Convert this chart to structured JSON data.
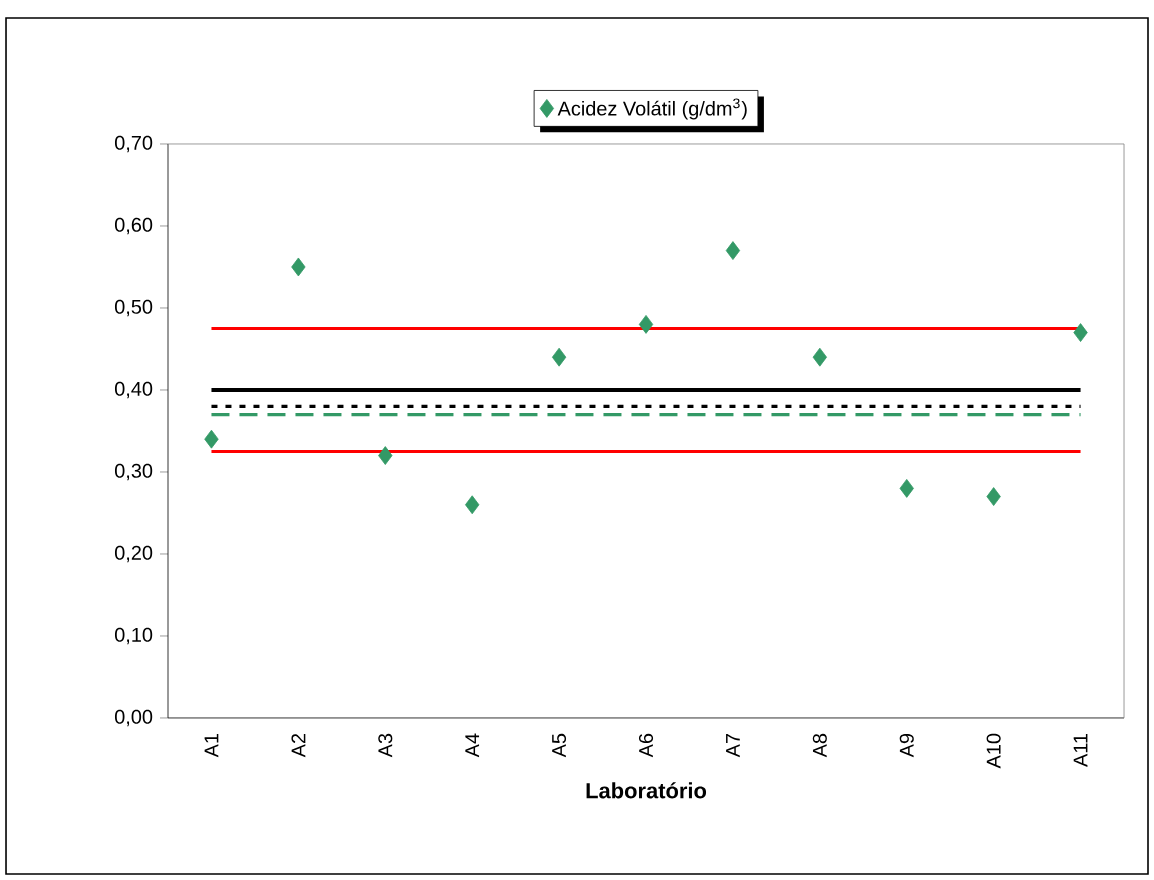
{
  "chart_data": {
    "type": "scatter",
    "xlabel": "Laboratório",
    "categories": [
      "A1",
      "A2",
      "A3",
      "A4",
      "A5",
      "A6",
      "A7",
      "A8",
      "A9",
      "A10",
      "A11"
    ],
    "series": [
      {
        "name": "Acidez Volátil (g/dm$^{3}$)",
        "color": "#339966",
        "values": [
          0.34,
          0.55,
          0.32,
          0.26,
          0.44,
          0.48,
          0.57,
          0.44,
          0.28,
          0.27,
          0.47
        ]
      }
    ],
    "ylim": [
      0,
      0.7
    ],
    "yticks": [
      {
        "value": 0,
        "label": "0,00"
      },
      {
        "value": 0.1,
        "label": "0,10"
      },
      {
        "value": 0.2,
        "label": "0,20"
      },
      {
        "value": 0.3,
        "label": "0,30"
      },
      {
        "value": 0.4,
        "label": "0,40"
      },
      {
        "value": 0.5,
        "label": "0,50"
      },
      {
        "value": 0.6,
        "label": "0,60"
      },
      {
        "value": 0.7,
        "label": "0,70"
      }
    ],
    "ref_lines": [
      {
        "axis": "y",
        "value": 0.475,
        "color": "#ff0000",
        "line_style": "solid"
      },
      {
        "axis": "y",
        "value": 0.325,
        "color": "#ff0000",
        "line_style": "solid"
      },
      {
        "axis": "y",
        "value": 0.4,
        "color": "#000000",
        "line_style": "solid"
      },
      {
        "axis": "y",
        "value": 0.38,
        "color": "#000000",
        "line_style": "dotted"
      },
      {
        "axis": "y",
        "value": 0.37,
        "color": "#339966",
        "line_style": "dashed"
      }
    ],
    "marker": "diamond",
    "legend": "top",
    "grid": false
  }
}
